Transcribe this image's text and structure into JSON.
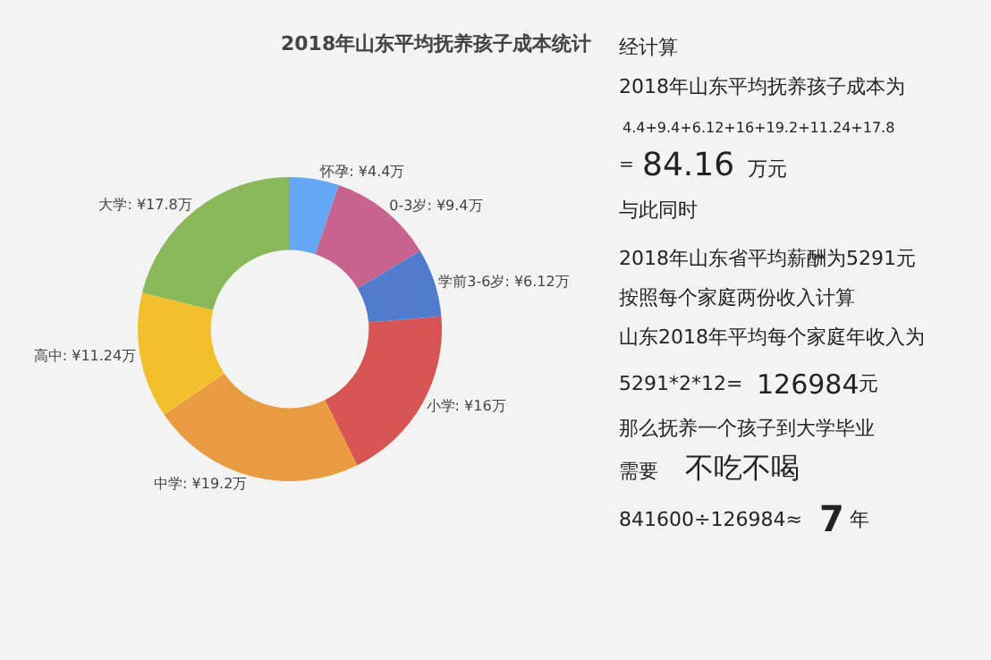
{
  "chart_data": [
    {
      "type": "donut",
      "title": "2018年山东平均抚养孩子成本统计",
      "categories": [
        "怀孕",
        "0-3岁",
        "学前3-6岁",
        "小学",
        "中学",
        "高中",
        "大学"
      ],
      "values": [
        4.4,
        9.4,
        6.12,
        16,
        19.2,
        11.24,
        17.8
      ],
      "value_labels": [
        "¥4.4万",
        "¥9.4万",
        "¥6.12万",
        "¥16万",
        "¥19.2万",
        "¥11.24万",
        "¥17.8万"
      ],
      "colors": [
        "#64a8f5",
        "#c8628e",
        "#4f7ccc",
        "#d65553",
        "#e89c3f",
        "#f2c02c",
        "#88b85a"
      ]
    },
    {
      "type": "other",
      "annotations": [
        "经计算",
        "2018年山东平均抚养孩子成本为",
        "4.4+9.4+6.12+16+19.2+11.24+17.8",
        "=",
        "84.16",
        "万元",
        "与此同时",
        "2018年山东省平均薪酬为5291元",
        "按照每个家庭两份收入计算",
        "山东2018年平均每个家庭年收入为",
        "5291*2*12=",
        "126984",
        "元",
        "那么抚养一个孩子到大学毕业",
        "需要",
        "不吃不喝",
        "841600÷126984≈",
        "7",
        "年"
      ]
    }
  ]
}
